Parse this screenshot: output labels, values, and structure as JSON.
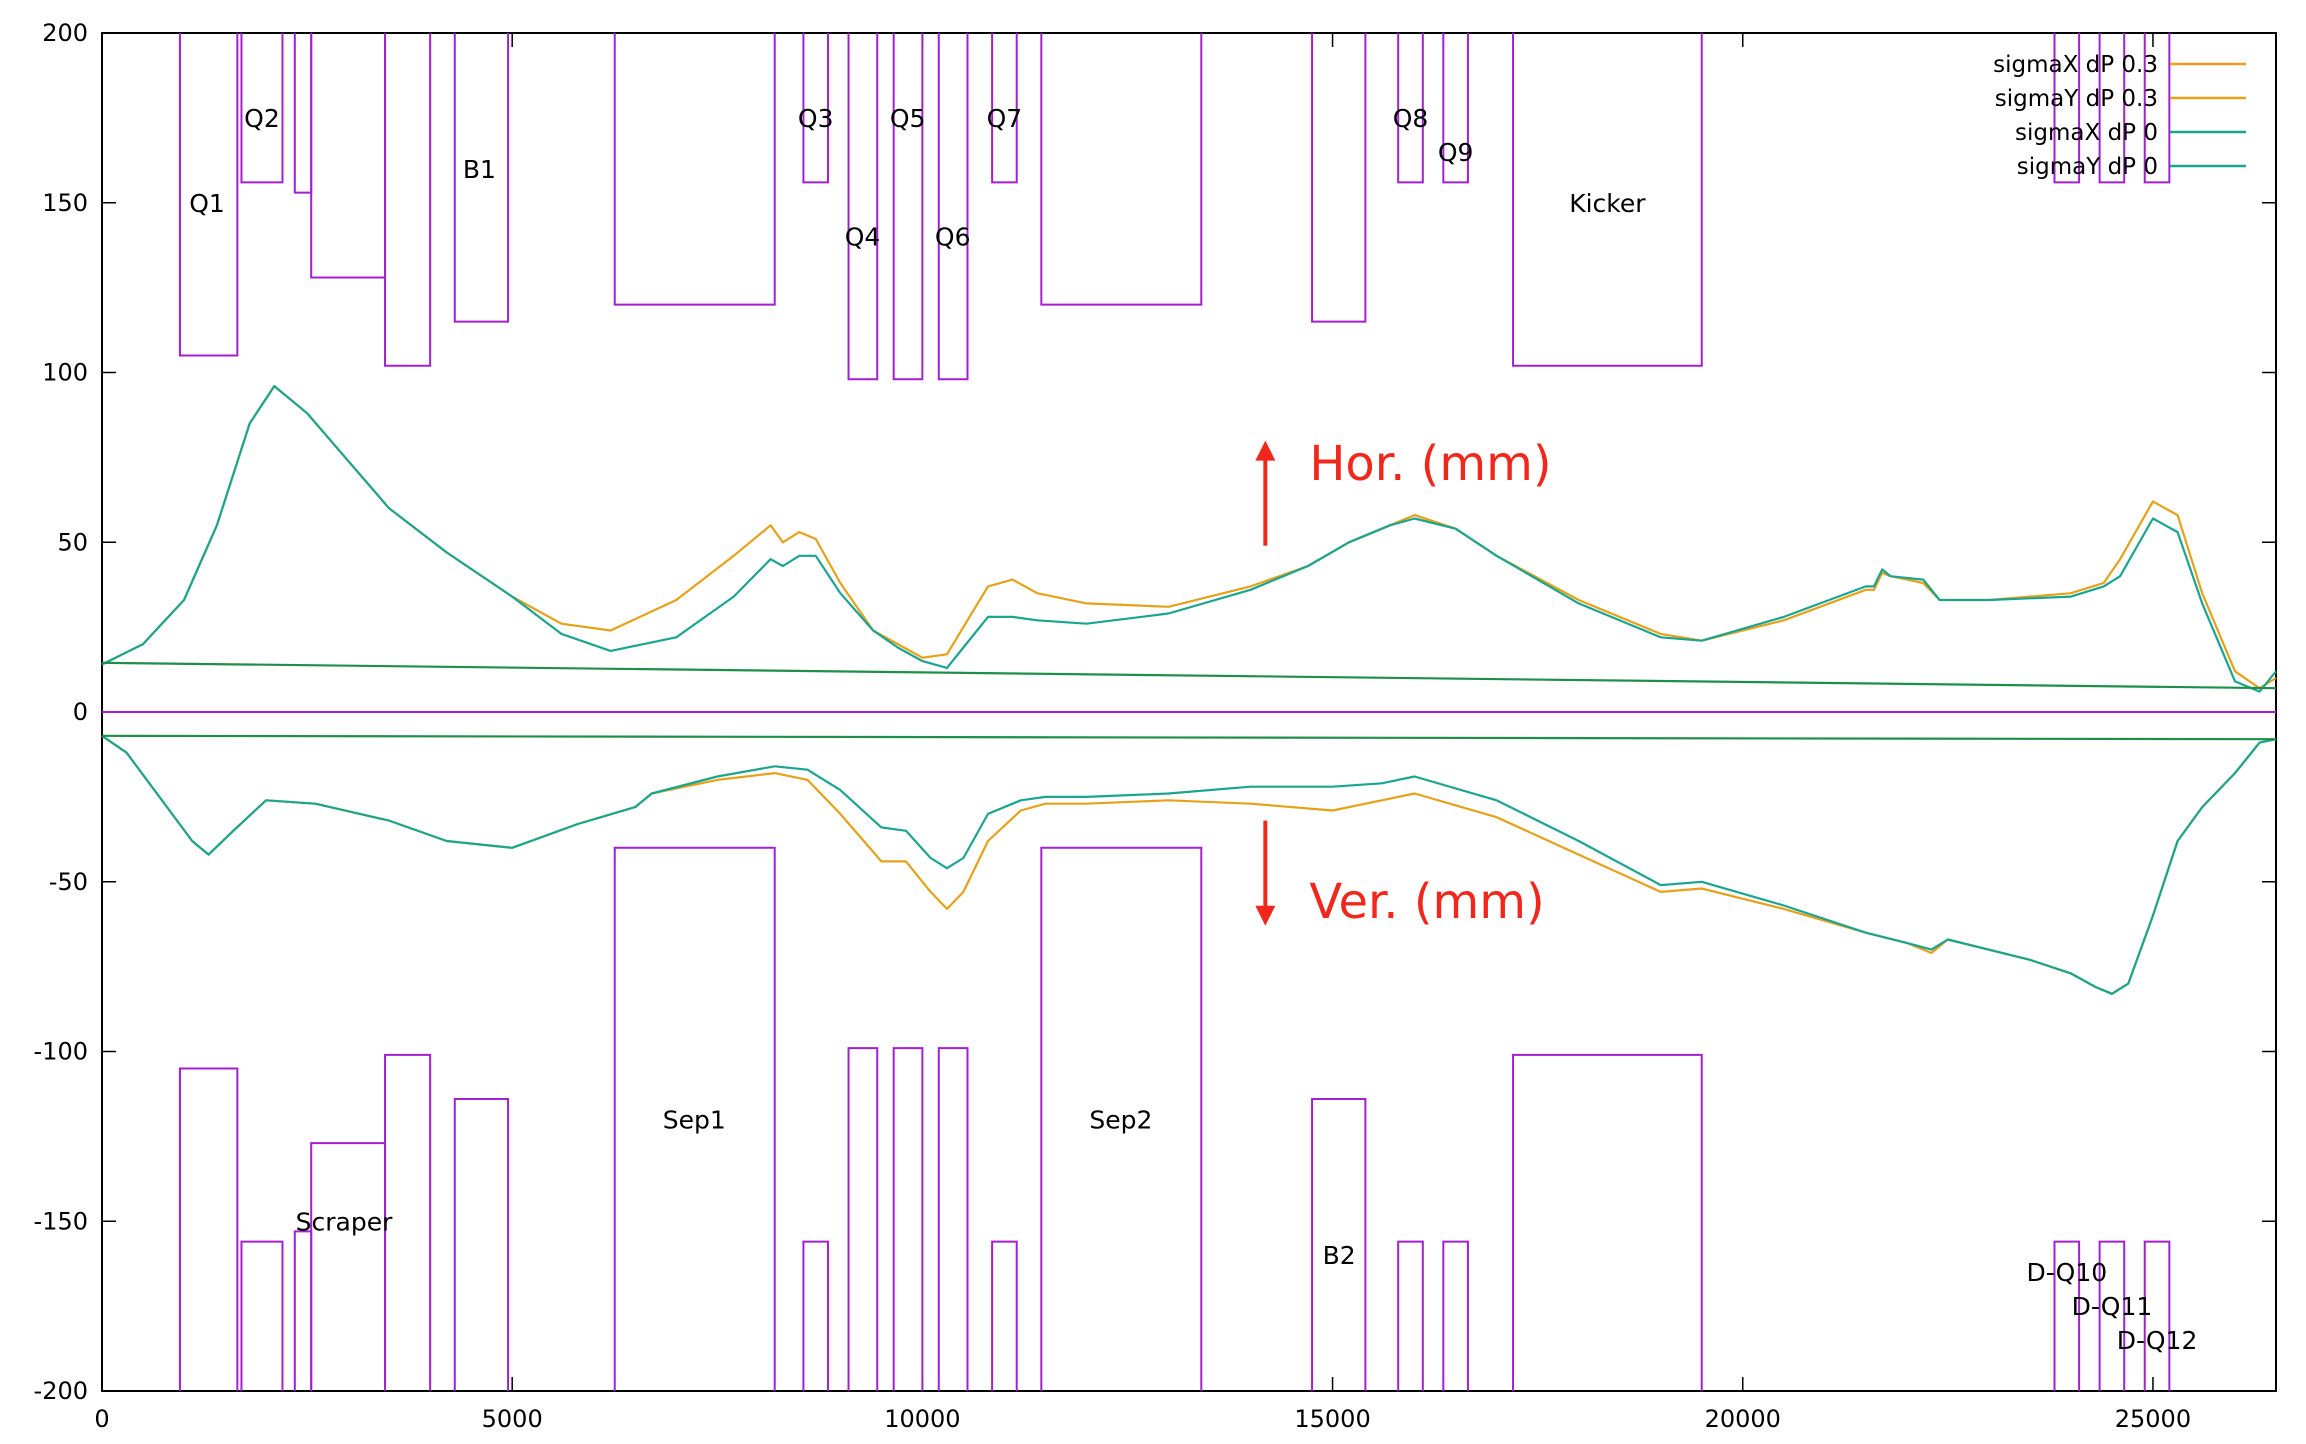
{
  "chart_data": {
    "type": "line",
    "title": "",
    "xlabel": "",
    "ylabel": "",
    "xlim": [
      0,
      26500
    ],
    "ylim": [
      -200,
      200
    ],
    "xticks": [
      0,
      5000,
      10000,
      15000,
      20000,
      25000
    ],
    "yticks": [
      -200,
      -150,
      -100,
      -50,
      0,
      50,
      100,
      150,
      200
    ],
    "colors": {
      "orange": "#e6a119",
      "teal": "#1aa590",
      "green": "#1e8e49",
      "magenta": "#a31fd0"
    },
    "legend": [
      {
        "label": "sigmaX dP 0.3",
        "color": "#e6a119"
      },
      {
        "label": "sigmaY dP 0.3",
        "color": "#e6a119"
      },
      {
        "label": "sigmaX dP 0",
        "color": "#1aa590"
      },
      {
        "label": "sigmaY dP 0",
        "color": "#1aa590"
      }
    ],
    "series": [
      {
        "name": "sigmaX dP 0.3",
        "color": "#e6a119",
        "x": [
          0,
          500,
          1000,
          1400,
          1800,
          2100,
          2500,
          3000,
          3500,
          4200,
          5000,
          5600,
          6200,
          7000,
          7700,
          8150,
          8300,
          8500,
          8700,
          9000,
          9400,
          9700,
          10000,
          10300,
          10500,
          10800,
          11100,
          11400,
          12000,
          13000,
          14000,
          14700,
          15200,
          15700,
          16000,
          16500,
          17000,
          18000,
          19000,
          19500,
          20500,
          21500,
          21600,
          21700,
          21800,
          22200,
          22400,
          23000,
          24000,
          24400,
          24600,
          25000,
          25300,
          25600,
          26000,
          26300,
          26500
        ],
        "y": [
          14,
          20,
          33,
          55,
          85,
          96,
          88,
          74,
          60,
          47,
          34,
          26,
          24,
          33,
          46,
          55,
          50,
          53,
          51,
          38,
          24,
          20,
          16,
          17,
          25,
          37,
          39,
          35,
          32,
          31,
          37,
          43,
          50,
          55,
          58,
          54,
          46,
          33,
          23,
          21,
          27,
          36,
          36,
          41,
          40,
          38,
          33,
          33,
          35,
          38,
          45,
          62,
          58,
          35,
          12,
          7,
          10
        ]
      },
      {
        "name": "sigmaX dP 0",
        "color": "#1aa590",
        "x": [
          0,
          500,
          1000,
          1400,
          1800,
          2100,
          2500,
          3000,
          3500,
          4200,
          5000,
          5600,
          6200,
          7000,
          7700,
          8150,
          8300,
          8500,
          8700,
          9000,
          9400,
          9700,
          10000,
          10300,
          10500,
          10800,
          11100,
          11400,
          12000,
          13000,
          14000,
          14700,
          15200,
          15700,
          16000,
          16500,
          17000,
          18000,
          19000,
          19500,
          20500,
          21500,
          21600,
          21700,
          21800,
          22200,
          22400,
          23000,
          24000,
          24400,
          24600,
          25000,
          25300,
          25600,
          26000,
          26300,
          26500
        ],
        "y": [
          14,
          20,
          33,
          55,
          85,
          96,
          88,
          74,
          60,
          47,
          34,
          23,
          18,
          22,
          34,
          45,
          43,
          46,
          46,
          35,
          24,
          19,
          15,
          13,
          19,
          28,
          28,
          27,
          26,
          29,
          36,
          43,
          50,
          55,
          57,
          54,
          46,
          32,
          22,
          21,
          28,
          37,
          37,
          42,
          40,
          39,
          33,
          33,
          34,
          37,
          40,
          57,
          53,
          32,
          9,
          6,
          12
        ]
      },
      {
        "name": "sigmaY dP 0.3",
        "color": "#e6a119",
        "x": [
          0,
          300,
          700,
          1100,
          1300,
          1600,
          2000,
          2600,
          3500,
          4200,
          5000,
          5800,
          6500,
          6700,
          7500,
          8200,
          8600,
          9000,
          9500,
          9800,
          10100,
          10300,
          10500,
          10800,
          11200,
          11500,
          12000,
          13000,
          14000,
          15000,
          15600,
          16000,
          17000,
          18000,
          19000,
          19500,
          20500,
          21500,
          22000,
          22300,
          22500,
          23500,
          24000,
          24300,
          24500,
          24700,
          25000,
          25300,
          25600,
          26000,
          26300,
          26500
        ],
        "y": [
          -7,
          -12,
          -25,
          -38,
          -42,
          -35,
          -26,
          -27,
          -32,
          -38,
          -40,
          -33,
          -28,
          -24,
          -20,
          -18,
          -20,
          -30,
          -44,
          -44,
          -53,
          -58,
          -53,
          -38,
          -29,
          -27,
          -27,
          -26,
          -27,
          -29,
          -26,
          -24,
          -31,
          -42,
          -53,
          -52,
          -58,
          -65,
          -68,
          -71,
          -67,
          -73,
          -77,
          -81,
          -83,
          -80,
          -60,
          -38,
          -28,
          -18,
          -9,
          -8
        ]
      },
      {
        "name": "sigmaY dP 0",
        "color": "#1aa590",
        "x": [
          0,
          300,
          700,
          1100,
          1300,
          1600,
          2000,
          2600,
          3500,
          4200,
          5000,
          5800,
          6500,
          6700,
          7500,
          8200,
          8600,
          9000,
          9500,
          9800,
          10100,
          10300,
          10500,
          10800,
          11200,
          11500,
          12000,
          13000,
          14000,
          15000,
          15600,
          16000,
          17000,
          18000,
          19000,
          19500,
          20500,
          21500,
          22000,
          22300,
          22500,
          23500,
          24000,
          24300,
          24500,
          24700,
          25000,
          25300,
          25600,
          26000,
          26300,
          26500
        ],
        "y": [
          -7,
          -12,
          -25,
          -38,
          -42,
          -35,
          -26,
          -27,
          -32,
          -38,
          -40,
          -33,
          -28,
          -24,
          -19,
          -16,
          -17,
          -23,
          -34,
          -35,
          -43,
          -46,
          -43,
          -30,
          -26,
          -25,
          -25,
          -24,
          -22,
          -22,
          -21,
          -19,
          -26,
          -38,
          -51,
          -50,
          -57,
          -65,
          -68,
          -70,
          -67,
          -73,
          -77,
          -81,
          -83,
          -80,
          -60,
          -38,
          -28,
          -18,
          -9,
          -8
        ]
      },
      {
        "name": "envelope-hor",
        "color": "#1e8e49",
        "x": [
          0,
          26500
        ],
        "y": [
          14.5,
          7
        ]
      },
      {
        "name": "envelope-ver",
        "color": "#1e8e49",
        "x": [
          0,
          26500
        ],
        "y": [
          -7,
          -8
        ]
      },
      {
        "name": "axis-zero",
        "color": "#a31fd0",
        "x": [
          0,
          26500
        ],
        "y": [
          0,
          0
        ]
      }
    ],
    "beamline_elements": {
      "upper": [
        {
          "label": "Q1",
          "start": 950,
          "end": 1650,
          "level": 105
        },
        {
          "label": "Q2",
          "start": 1700,
          "end": 2200,
          "level": 156
        },
        {
          "label": "",
          "start": 2350,
          "end": 2550,
          "level": 153
        },
        {
          "label": "",
          "start": 2550,
          "end": 3450,
          "level": 128
        },
        {
          "label": "",
          "start": 3450,
          "end": 4000,
          "level": 102
        },
        {
          "label": "B1",
          "start": 4300,
          "end": 4950,
          "level": 115
        },
        {
          "label": "",
          "start": 6250,
          "end": 8200,
          "level": 120
        },
        {
          "label": "Q3",
          "start": 8550,
          "end": 8850,
          "level": 156
        },
        {
          "label": "Q4",
          "start": 9100,
          "end": 9450,
          "level": 98
        },
        {
          "label": "Q5",
          "start": 9650,
          "end": 10000,
          "level": 98
        },
        {
          "label": "Q6",
          "start": 10200,
          "end": 10550,
          "level": 98
        },
        {
          "label": "Q7",
          "start": 10850,
          "end": 11150,
          "level": 156
        },
        {
          "label": "",
          "start": 11450,
          "end": 13400,
          "level": 120
        },
        {
          "label": "",
          "start": 14750,
          "end": 15400,
          "level": 115
        },
        {
          "label": "Q8",
          "start": 15800,
          "end": 16100,
          "level": 156
        },
        {
          "label": "Q9",
          "start": 16350,
          "end": 16650,
          "level": 156
        },
        {
          "label": "Kicker",
          "start": 17200,
          "end": 19500,
          "level": 102
        },
        {
          "label": "",
          "start": 23800,
          "end": 24100,
          "level": 156
        },
        {
          "label": "",
          "start": 24350,
          "end": 24650,
          "level": 156
        },
        {
          "label": "",
          "start": 24900,
          "end": 25200,
          "level": 156
        }
      ],
      "lower": [
        {
          "label": "",
          "start": 950,
          "end": 1650,
          "level": -105
        },
        {
          "label": "",
          "start": 1700,
          "end": 2200,
          "level": -156
        },
        {
          "label": "Scraper",
          "start": 2350,
          "end": 2550,
          "level": -153
        },
        {
          "label": "",
          "start": 2550,
          "end": 3450,
          "level": -127
        },
        {
          "label": "",
          "start": 3450,
          "end": 4000,
          "level": -101
        },
        {
          "label": "",
          "start": 4300,
          "end": 4950,
          "level": -114
        },
        {
          "label": "Sep1",
          "start": 6250,
          "end": 8200,
          "level": -40
        },
        {
          "label": "",
          "start": 8550,
          "end": 8850,
          "level": -156
        },
        {
          "label": "",
          "start": 9100,
          "end": 9450,
          "level": -99
        },
        {
          "label": "",
          "start": 9650,
          "end": 10000,
          "level": -99
        },
        {
          "label": "",
          "start": 10200,
          "end": 10550,
          "level": -99
        },
        {
          "label": "",
          "start": 10850,
          "end": 11150,
          "level": -156
        },
        {
          "label": "Sep2",
          "start": 11450,
          "end": 13400,
          "level": -40
        },
        {
          "label": "B2",
          "start": 14750,
          "end": 15400,
          "level": -114
        },
        {
          "label": "",
          "start": 15800,
          "end": 16100,
          "level": -156
        },
        {
          "label": "",
          "start": 16350,
          "end": 16650,
          "level": -156
        },
        {
          "label": "",
          "start": 17200,
          "end": 19500,
          "level": -101
        },
        {
          "label": "D-Q10",
          "start": 23800,
          "end": 24100,
          "level": -156
        },
        {
          "label": "D-Q11",
          "start": 24350,
          "end": 24650,
          "level": -156
        },
        {
          "label": "D-Q12",
          "start": 24900,
          "end": 25200,
          "level": -156
        }
      ]
    },
    "annotations": [
      {
        "text": "Hor. (mm)",
        "x": 14400,
        "y": 73,
        "arrow": "up"
      },
      {
        "text": "Ver. (mm)",
        "x": 14400,
        "y": -56,
        "arrow": "down"
      }
    ]
  }
}
